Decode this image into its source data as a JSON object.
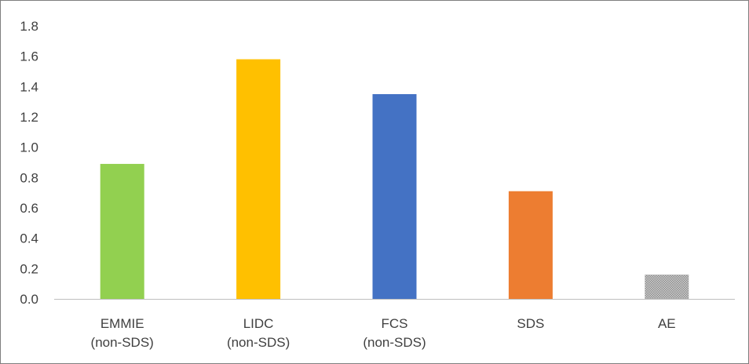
{
  "chart_data": {
    "type": "bar",
    "categories": [
      [
        "EMMIE",
        "(non-SDS)"
      ],
      [
        "LIDC",
        "(non-SDS)"
      ],
      [
        "FCS",
        "(non-SDS)"
      ],
      [
        "SDS"
      ],
      [
        "AE"
      ]
    ],
    "values": [
      0.89,
      1.58,
      1.35,
      0.71,
      0.16
    ],
    "colors": [
      "#92d050",
      "#ffc000",
      "#4472c4",
      "#ed7d31",
      "#a6a6a6"
    ],
    "patterns": [
      null,
      null,
      null,
      null,
      "dotted-gray"
    ],
    "yticks": [
      "0.0",
      "0.2",
      "0.4",
      "0.6",
      "0.8",
      "1.0",
      "1.2",
      "1.4",
      "1.6",
      "1.8"
    ],
    "ylim": [
      0,
      1.8
    ],
    "title": "",
    "xlabel": "",
    "ylabel": "",
    "grid": false,
    "legend": "none"
  }
}
